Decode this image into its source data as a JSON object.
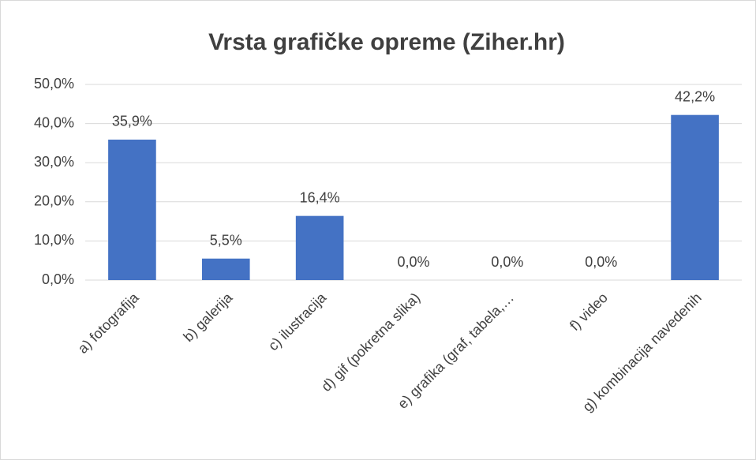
{
  "chart_data": {
    "type": "bar",
    "title": "Vrsta grafičke opreme (Ziher.hr)",
    "categories": [
      "a) fotografija",
      "b) galerija",
      "c) ilustracija",
      "d) gif (pokretna slika)",
      "e) grafika (graf, tabela,…",
      "f) video",
      "g) kombinacija navedenih"
    ],
    "values": [
      35.9,
      5.5,
      16.4,
      0,
      0,
      0,
      42.2
    ],
    "value_labels": [
      "35,9%",
      "5,5%",
      "16,4%",
      "0,0%",
      "0,0%",
      "0,0%",
      "42,2%"
    ],
    "color": "#4472c4",
    "ylim": [
      0,
      50
    ],
    "yticks": [
      {
        "value": 0,
        "label": "0,0%"
      },
      {
        "value": 10,
        "label": "10,0%"
      },
      {
        "value": 20,
        "label": "20,0%"
      },
      {
        "value": 30,
        "label": "30,0%"
      },
      {
        "value": 40,
        "label": "40,0%"
      },
      {
        "value": 50,
        "label": "50,0%"
      }
    ],
    "grid": true
  }
}
